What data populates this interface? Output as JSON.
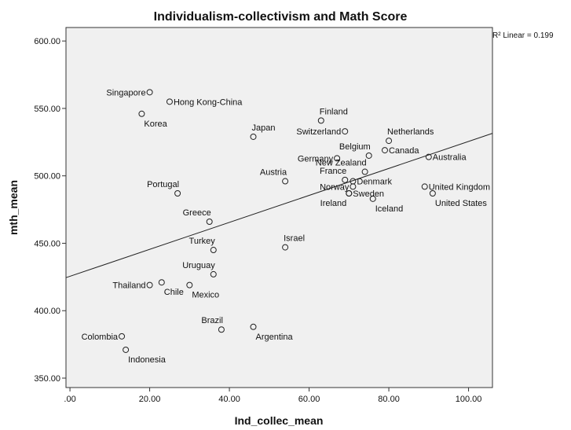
{
  "chart_data": {
    "type": "scatter",
    "title": "Individualism-collectivism and Math Score",
    "xlabel": "Ind_collec_mean",
    "ylabel": "mth_mean",
    "xlim": [
      -1,
      106
    ],
    "ylim": [
      343,
      610
    ],
    "xticks": [
      0,
      20,
      40,
      60,
      80,
      100
    ],
    "xtick_labels": [
      ".00",
      "20.00",
      "40.00",
      "60.00",
      "80.00",
      "100.00"
    ],
    "yticks": [
      350,
      400,
      450,
      500,
      550,
      600
    ],
    "ytick_labels": [
      "350.00",
      "400.00",
      "450.00",
      "500.00",
      "550.00",
      "600.00"
    ],
    "grid": false,
    "fit_line": {
      "type": "linear",
      "r_squared": 0.199,
      "label": "R² Linear = 0.199",
      "intercept": 425.5,
      "slope": 1.0
    },
    "points": [
      {
        "label": "Singapore",
        "x": 20,
        "y": 562,
        "label_pos": "left"
      },
      {
        "label": "Hong Kong-China",
        "x": 25,
        "y": 555,
        "label_pos": "right"
      },
      {
        "label": "Korea",
        "x": 18,
        "y": 546,
        "label_pos": "below-right"
      },
      {
        "label": "Japan",
        "x": 46,
        "y": 529,
        "label_pos": "above-right"
      },
      {
        "label": "Finland",
        "x": 63,
        "y": 541,
        "label_pos": "above-right"
      },
      {
        "label": "Switzerland",
        "x": 69,
        "y": 533,
        "label_pos": "left"
      },
      {
        "label": "Netherlands",
        "x": 80,
        "y": 526,
        "label_pos": "above-right"
      },
      {
        "label": "Canada",
        "x": 79,
        "y": 519,
        "label_pos": "right"
      },
      {
        "label": "Belgium",
        "x": 75,
        "y": 515,
        "label_pos": "above-left"
      },
      {
        "label": "Germany",
        "x": 67,
        "y": 513,
        "label_pos": "left"
      },
      {
        "label": "Australia",
        "x": 90,
        "y": 514,
        "label_pos": "right"
      },
      {
        "label": "New Zealand",
        "x": 74,
        "y": 503,
        "label_pos": "above-left"
      },
      {
        "label": "France",
        "x": 69,
        "y": 497,
        "label_pos": "above-left"
      },
      {
        "label": "Austria",
        "x": 54,
        "y": 496,
        "label_pos": "above-left"
      },
      {
        "label": "Denmark",
        "x": 71,
        "y": 496,
        "label_pos": "right"
      },
      {
        "label": "United Kingdom",
        "x": 89,
        "y": 492,
        "label_pos": "right"
      },
      {
        "label": "Norway",
        "x": 71,
        "y": 492,
        "label_pos": "left"
      },
      {
        "label": "Sweden",
        "x": 70,
        "y": 487,
        "label_pos": "right"
      },
      {
        "label": "Ireland",
        "x": 70,
        "y": 487,
        "label_pos": "below-left"
      },
      {
        "label": "United States",
        "x": 91,
        "y": 487,
        "label_pos": "below-right"
      },
      {
        "label": "Iceland",
        "x": 76,
        "y": 483,
        "label_pos": "below-right"
      },
      {
        "label": "Portugal",
        "x": 27,
        "y": 487,
        "label_pos": "above-left"
      },
      {
        "label": "Greece",
        "x": 35,
        "y": 466,
        "label_pos": "above-left"
      },
      {
        "label": "Israel",
        "x": 54,
        "y": 447,
        "label_pos": "above-right"
      },
      {
        "label": "Turkey",
        "x": 36,
        "y": 445,
        "label_pos": "above-left"
      },
      {
        "label": "Uruguay",
        "x": 36,
        "y": 427,
        "label_pos": "above-left"
      },
      {
        "label": "Thailand",
        "x": 20,
        "y": 419,
        "label_pos": "left"
      },
      {
        "label": "Chile",
        "x": 23,
        "y": 421,
        "label_pos": "below-right"
      },
      {
        "label": "Mexico",
        "x": 30,
        "y": 419,
        "label_pos": "below-right"
      },
      {
        "label": "Brazil",
        "x": 38,
        "y": 386,
        "label_pos": "above-left"
      },
      {
        "label": "Argentina",
        "x": 46,
        "y": 388,
        "label_pos": "below-right"
      },
      {
        "label": "Colombia",
        "x": 13,
        "y": 381,
        "label_pos": "left"
      },
      {
        "label": "Indonesia",
        "x": 14,
        "y": 371,
        "label_pos": "below-right"
      }
    ]
  }
}
